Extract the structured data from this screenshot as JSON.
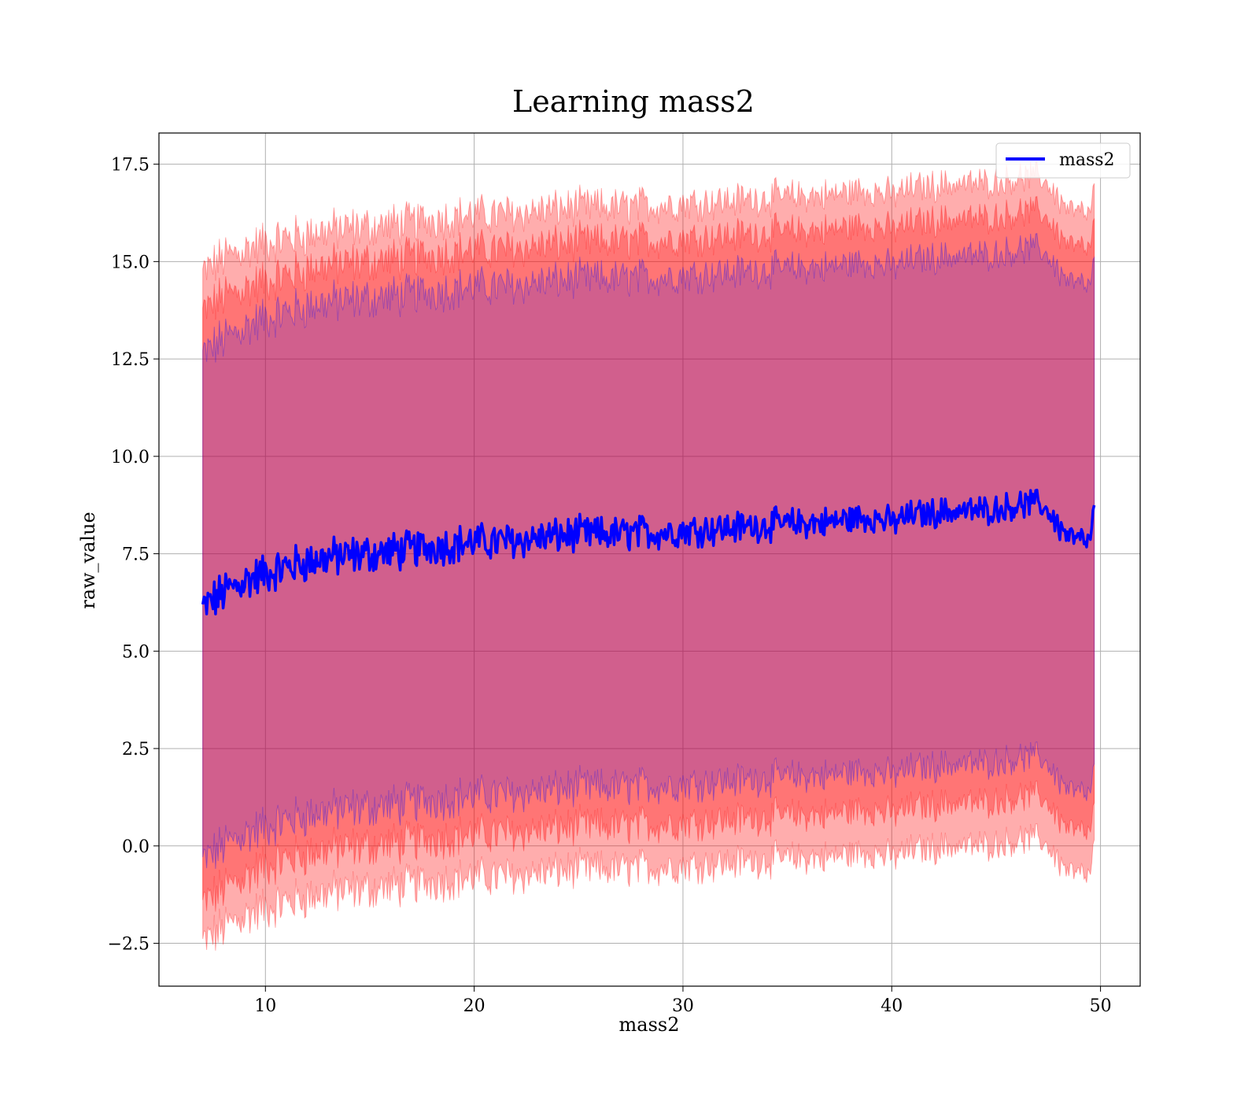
{
  "chart_data": {
    "type": "line",
    "title": "Learning mass2",
    "xlabel": "mass2",
    "ylabel": "raw_value",
    "xlim": [
      4.9,
      51.9
    ],
    "ylim": [
      -3.6,
      18.3
    ],
    "xticks": [
      10,
      20,
      30,
      40,
      50
    ],
    "yticks": [
      -2.5,
      0.0,
      2.5,
      5.0,
      7.5,
      10.0,
      12.5,
      15.0,
      17.5
    ],
    "xtick_labels": [
      "10",
      "20",
      "30",
      "40",
      "50"
    ],
    "ytick_labels": [
      "−2.5",
      "0.0",
      "2.5",
      "5.0",
      "7.5",
      "10.0",
      "12.5",
      "15.0",
      "17.5"
    ],
    "grid": true,
    "legend": {
      "position": "top-right",
      "entries": [
        "mass2"
      ]
    },
    "series": [
      {
        "name": "mass2",
        "color": "#0000ff",
        "x": [
          7.0,
          8.0,
          9.0,
          10.0,
          11.0,
          12.0,
          13.0,
          14.0,
          15.0,
          16.0,
          17.0,
          18.0,
          19.0,
          20.0,
          21.0,
          22.0,
          23.0,
          24.0,
          25.0,
          26.0,
          27.0,
          28.0,
          29.0,
          30.0,
          31.0,
          32.0,
          33.0,
          34.0,
          35.0,
          36.0,
          37.0,
          38.0,
          39.0,
          40.0,
          41.0,
          42.0,
          43.0,
          44.0,
          45.0,
          46.0,
          47.0,
          47.5,
          48.0,
          48.5,
          49.0,
          49.5,
          49.7
        ],
        "y": [
          6.1,
          6.5,
          6.8,
          7.0,
          7.15,
          7.3,
          7.4,
          7.45,
          7.5,
          7.55,
          7.6,
          7.7,
          7.75,
          7.8,
          7.8,
          7.85,
          7.9,
          7.95,
          8.0,
          8.0,
          8.0,
          8.05,
          8.05,
          8.1,
          8.15,
          8.15,
          8.2,
          8.25,
          8.25,
          8.3,
          8.3,
          8.4,
          8.45,
          8.3,
          8.5,
          8.55,
          8.6,
          8.6,
          8.65,
          8.75,
          8.8,
          8.6,
          8.2,
          7.95,
          7.85,
          7.8,
          8.65
        ]
      }
    ],
    "bands": [
      {
        "color": "#ff0000",
        "opacity": 0.32,
        "x": [
          7.0,
          8.0,
          9.0,
          10.0,
          11.0,
          12.0,
          13.0,
          14.0,
          15.0,
          16.0,
          17.0,
          18.0,
          19.0,
          20.0,
          21.0,
          22.0,
          23.0,
          24.0,
          25.0,
          26.0,
          27.0,
          28.0,
          29.0,
          30.0,
          31.0,
          32.0,
          33.0,
          34.0,
          35.0,
          36.0,
          37.0,
          38.0,
          39.0,
          40.0,
          41.0,
          42.0,
          43.0,
          44.0,
          45.0,
          46.0,
          47.0,
          47.5,
          48.0,
          48.5,
          49.0,
          49.5,
          49.7
        ],
        "upper": [
          14.7,
          15.1,
          15.3,
          15.5,
          15.6,
          15.7,
          15.8,
          15.85,
          15.9,
          15.95,
          16.0,
          16.1,
          16.15,
          16.2,
          16.2,
          16.25,
          16.3,
          16.35,
          16.4,
          16.4,
          16.4,
          16.45,
          16.45,
          16.5,
          16.55,
          16.55,
          16.6,
          16.65,
          16.65,
          16.7,
          16.7,
          16.8,
          16.85,
          16.7,
          16.9,
          16.95,
          17.0,
          17.0,
          17.05,
          17.15,
          17.2,
          17.0,
          16.6,
          16.35,
          16.25,
          16.2,
          16.9
        ],
        "lower": [
          -2.5,
          -2.1,
          -1.8,
          -1.6,
          -1.45,
          -1.3,
          -1.2,
          -1.15,
          -1.1,
          -1.05,
          -1.0,
          -0.9,
          -0.85,
          -0.8,
          -0.8,
          -0.75,
          -0.7,
          -0.65,
          -0.6,
          -0.6,
          -0.6,
          -0.55,
          -0.55,
          -0.5,
          -0.45,
          -0.45,
          -0.4,
          -0.35,
          -0.35,
          -0.3,
          -0.3,
          -0.2,
          -0.15,
          -0.3,
          -0.1,
          -0.05,
          0.0,
          0.0,
          0.05,
          0.15,
          0.2,
          0.0,
          -0.4,
          -0.65,
          -0.75,
          -0.8,
          0.05
        ]
      },
      {
        "color": "#ff0000",
        "opacity": 0.32,
        "x": [
          7.0,
          8.0,
          9.0,
          10.0,
          11.0,
          12.0,
          13.0,
          14.0,
          15.0,
          16.0,
          17.0,
          18.0,
          19.0,
          20.0,
          21.0,
          22.0,
          23.0,
          24.0,
          25.0,
          26.0,
          27.0,
          28.0,
          29.0,
          30.0,
          31.0,
          32.0,
          33.0,
          34.0,
          35.0,
          36.0,
          37.0,
          38.0,
          39.0,
          40.0,
          41.0,
          42.0,
          43.0,
          44.0,
          45.0,
          46.0,
          47.0,
          47.5,
          48.0,
          48.5,
          49.0,
          49.5,
          49.7
        ],
        "upper": [
          13.7,
          14.1,
          14.3,
          14.5,
          14.65,
          14.8,
          14.9,
          14.95,
          15.0,
          15.05,
          15.1,
          15.2,
          15.25,
          15.3,
          15.3,
          15.35,
          15.4,
          15.45,
          15.5,
          15.5,
          15.5,
          15.55,
          15.55,
          15.6,
          15.65,
          15.65,
          15.7,
          15.75,
          15.75,
          15.8,
          15.8,
          15.9,
          15.95,
          15.8,
          16.0,
          16.05,
          16.1,
          16.1,
          16.15,
          16.25,
          16.3,
          16.1,
          15.7,
          15.45,
          15.35,
          15.3,
          16.0
        ],
        "lower": [
          -1.5,
          -1.1,
          -0.8,
          -0.5,
          -0.35,
          -0.2,
          -0.1,
          -0.05,
          0.0,
          0.05,
          0.1,
          0.2,
          0.25,
          0.3,
          0.3,
          0.35,
          0.4,
          0.45,
          0.5,
          0.5,
          0.5,
          0.55,
          0.55,
          0.6,
          0.65,
          0.65,
          0.7,
          0.75,
          0.75,
          0.8,
          0.8,
          0.9,
          0.95,
          0.8,
          1.0,
          1.05,
          1.1,
          1.1,
          1.15,
          1.25,
          1.3,
          1.1,
          0.7,
          0.45,
          0.35,
          0.3,
          1.0
        ]
      },
      {
        "color": "#0000ff",
        "opacity": 0.18,
        "x": [
          7.0,
          8.0,
          9.0,
          10.0,
          11.0,
          12.0,
          13.0,
          14.0,
          15.0,
          16.0,
          17.0,
          18.0,
          19.0,
          20.0,
          21.0,
          22.0,
          23.0,
          24.0,
          25.0,
          26.0,
          27.0,
          28.0,
          29.0,
          30.0,
          31.0,
          32.0,
          33.0,
          34.0,
          35.0,
          36.0,
          37.0,
          38.0,
          39.0,
          40.0,
          41.0,
          42.0,
          43.0,
          44.0,
          45.0,
          46.0,
          47.0,
          47.5,
          48.0,
          48.5,
          49.0,
          49.5,
          49.7
        ],
        "upper": [
          12.6,
          13.0,
          13.3,
          13.55,
          13.7,
          13.85,
          13.95,
          14.0,
          14.05,
          14.1,
          14.15,
          14.25,
          14.3,
          14.35,
          14.35,
          14.4,
          14.45,
          14.5,
          14.55,
          14.55,
          14.55,
          14.6,
          14.6,
          14.65,
          14.7,
          14.7,
          14.75,
          14.8,
          14.8,
          14.85,
          14.85,
          14.95,
          15.0,
          14.85,
          15.05,
          15.1,
          15.15,
          15.15,
          15.2,
          15.3,
          15.35,
          15.15,
          14.75,
          14.5,
          14.4,
          14.35,
          15.0
        ],
        "lower": [
          -0.4,
          0.0,
          0.3,
          0.5,
          0.65,
          0.8,
          0.9,
          0.95,
          1.0,
          1.05,
          1.1,
          1.2,
          1.25,
          1.3,
          1.3,
          1.35,
          1.4,
          1.45,
          1.5,
          1.5,
          1.5,
          1.55,
          1.55,
          1.6,
          1.65,
          1.65,
          1.7,
          1.75,
          1.75,
          1.8,
          1.8,
          1.9,
          1.95,
          1.8,
          2.0,
          2.05,
          2.1,
          2.1,
          2.15,
          2.25,
          2.3,
          2.1,
          1.7,
          1.45,
          1.35,
          1.3,
          2.0
        ]
      }
    ]
  }
}
